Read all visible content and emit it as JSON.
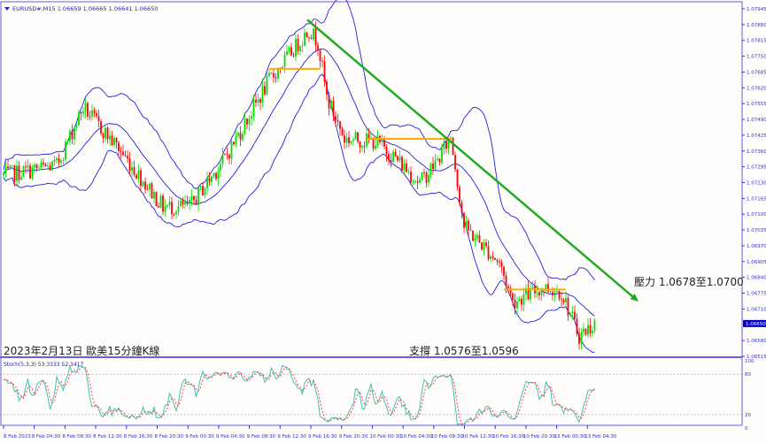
{
  "header": {
    "symbol_info": "EURUSD#,M15  1.06659 1.06665 1.06641 1.06650"
  },
  "annotations": {
    "title": "2023年2月13日 歐美15分鐘K線",
    "support": "支撐 1.0576至1.0596",
    "resistance": "壓力 1.0678至1.0700"
  },
  "colors": {
    "up": "#00dd00",
    "down": "#ff0000",
    "bands": "#2020e0",
    "trend": "#22aa22",
    "level": "#ffaa00",
    "stoch_main": "#40c0b0",
    "stoch_signal": "#ff4040",
    "axis": "#3030d0"
  },
  "chart_data": {
    "type": "candlestick",
    "price_axis": {
      "ticks": [
        "1.07945",
        "1.07880",
        "1.07815",
        "1.07750",
        "1.07685",
        "1.07620",
        "1.07555",
        "1.07490",
        "1.07425",
        "1.07360",
        "1.07295",
        "1.07230",
        "1.07165",
        "1.07100",
        "1.07035",
        "1.06970",
        "1.06905",
        "1.06840",
        "1.06775",
        "1.06710",
        "1.06580",
        "1.06515"
      ],
      "current": "1.06650",
      "range": [
        1.06515,
        1.07945
      ]
    },
    "time_axis": [
      "8 Feb 2023",
      "8 Feb 04:30",
      "8 Feb 08:30",
      "8 Feb 12:30",
      "8 Feb 16:30",
      "8 Feb 20:30",
      "9 Feb 00:30",
      "9 Feb 04:30",
      "9 Feb 08:30",
      "9 Feb 12:30",
      "9 Feb 16:30",
      "9 Feb 20:30",
      "10 Feb 00:30",
      "10 Feb 04:30",
      "10 Feb 08:30",
      "10 Feb 12:30",
      "10 Feb 16:30",
      "10 Feb 20:30",
      "13 Feb 00:30",
      "13 Feb 04:30"
    ],
    "price_path": [
      [
        0,
        1.0726
      ],
      [
        24,
        1.073
      ],
      [
        36,
        1.0754
      ],
      [
        52,
        1.0737
      ],
      [
        72,
        1.0713
      ],
      [
        84,
        1.0713
      ],
      [
        100,
        1.0733
      ],
      [
        120,
        1.0765
      ],
      [
        138,
        1.0786
      ],
      [
        142,
        1.0781
      ],
      [
        146,
        1.0758
      ],
      [
        154,
        1.0741
      ],
      [
        168,
        1.074
      ],
      [
        176,
        1.0734
      ],
      [
        188,
        1.0723
      ],
      [
        196,
        1.0732
      ],
      [
        202,
        1.0742
      ],
      [
        208,
        1.0705
      ],
      [
        224,
        1.069
      ],
      [
        230,
        1.0674
      ],
      [
        244,
        1.068
      ],
      [
        252,
        1.0678
      ],
      [
        260,
        1.066
      ],
      [
        267,
        1.0665
      ]
    ],
    "bollinger": {
      "period": 20,
      "deviations": 2
    },
    "trendline": {
      "from": [
        "9 Feb 13:00",
        1.079
      ],
      "to": [
        "13 Feb 08:00",
        1.0675
      ]
    },
    "levels": [
      {
        "price": 1.07698,
        "from_bar": 120,
        "to_bar": 143
      },
      {
        "price": 1.0741,
        "from_bar": 164,
        "to_bar": 202
      },
      {
        "price": 1.0679,
        "from_bar": 226,
        "to_bar": 254
      }
    ],
    "stochastic": {
      "label": "Stoch(5,3,3) 53.3333 52.3417",
      "levels": [
        80,
        20
      ],
      "axis": [
        "100",
        "80",
        "20",
        "0"
      ]
    }
  }
}
